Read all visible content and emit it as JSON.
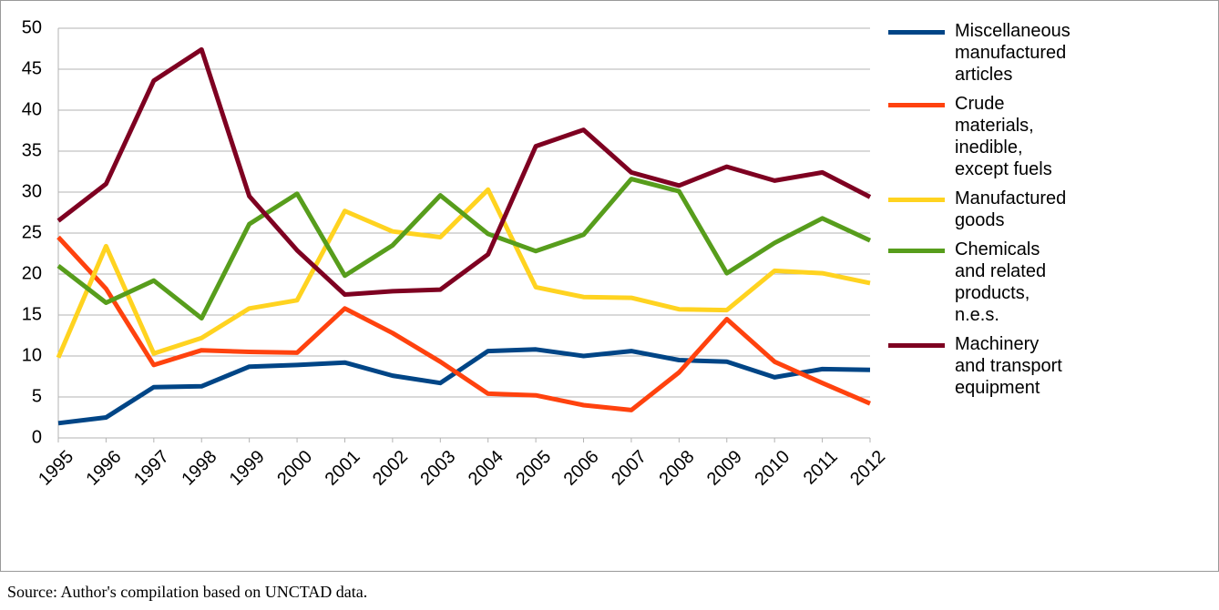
{
  "chart_data": {
    "type": "line",
    "categories": [
      "1995",
      "1996",
      "1997",
      "1998",
      "1999",
      "2000",
      "2001",
      "2002",
      "2003",
      "2004",
      "2005",
      "2006",
      "2007",
      "2008",
      "2009",
      "2010",
      "2011",
      "2012"
    ],
    "series": [
      {
        "name": "Miscellaneous manufactured articles",
        "color": "#004586",
        "values": [
          1.8,
          2.5,
          6.2,
          6.3,
          8.7,
          8.9,
          9.2,
          7.6,
          6.7,
          10.6,
          10.8,
          10.0,
          10.6,
          9.5,
          9.3,
          7.4,
          8.4,
          8.3
        ]
      },
      {
        "name": "Crude materials, inedible, except fuels",
        "color": "#ff420e",
        "values": [
          24.5,
          18.2,
          8.9,
          10.7,
          10.5,
          10.4,
          15.8,
          12.8,
          9.3,
          5.4,
          5.2,
          4.0,
          3.4,
          8.0,
          14.5,
          9.3,
          6.7,
          4.2
        ]
      },
      {
        "name": "Manufactured goods",
        "color": "#ffd320",
        "values": [
          9.8,
          23.4,
          10.3,
          12.2,
          15.8,
          16.8,
          27.7,
          25.2,
          24.5,
          30.3,
          18.4,
          17.2,
          17.1,
          15.7,
          15.6,
          20.4,
          20.1,
          18.9
        ]
      },
      {
        "name": "Chemicals and related products, n.e.s.",
        "color": "#579d1c",
        "values": [
          21.0,
          16.5,
          19.2,
          14.6,
          26.1,
          29.8,
          19.8,
          23.5,
          29.6,
          24.9,
          22.8,
          24.8,
          31.6,
          30.1,
          20.1,
          23.8,
          26.8,
          24.1
        ]
      },
      {
        "name": "Machinery and transport equipment",
        "color": "#7e0021",
        "values": [
          26.5,
          31.0,
          43.6,
          47.4,
          29.5,
          22.9,
          17.5,
          17.9,
          18.1,
          22.4,
          35.6,
          37.6,
          32.4,
          30.8,
          33.1,
          31.4,
          32.4,
          29.4
        ]
      }
    ],
    "ylim": [
      0,
      50
    ],
    "yticks": [
      0,
      5,
      10,
      15,
      20,
      25,
      30,
      35,
      40,
      45,
      50
    ],
    "grid": true,
    "source": "Source: Author's compilation based on UNCTAD data."
  }
}
